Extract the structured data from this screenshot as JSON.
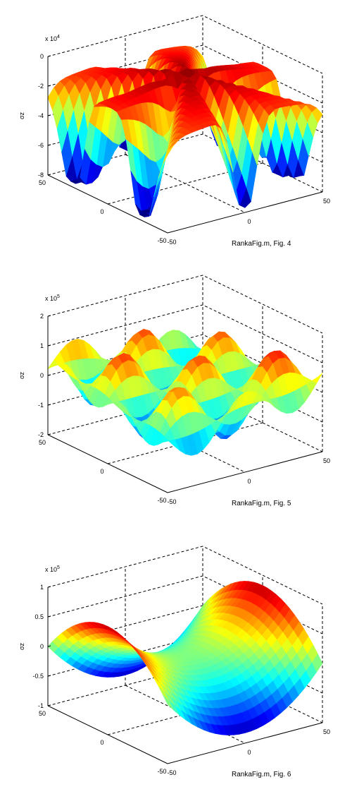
{
  "chart_data": [
    {
      "type": "surface",
      "caption": "RankaFig.m, Fig. 4",
      "ylabel": "σz",
      "z_multiplier": "x 10",
      "z_exponent": "4",
      "z_ticks": [
        "0",
        "-2",
        "-4",
        "-6",
        "-8"
      ],
      "zlim": [
        -8,
        0
      ],
      "x_ticks": [
        "-50",
        "0",
        "50"
      ],
      "y_ticks": [
        "50",
        "0",
        "-50"
      ],
      "xlim": [
        -50,
        50
      ],
      "ylim": [
        -50,
        50
      ],
      "colormap": [
        "#00008f",
        "#0000ff",
        "#00ffff",
        "#ffff00",
        "#ff0000",
        "#800000"
      ]
    },
    {
      "type": "surface",
      "caption": "RankaFig.m, Fig. 5",
      "ylabel": "σz",
      "z_multiplier": "x 10",
      "z_exponent": "5",
      "z_ticks": [
        "2",
        "1",
        "0",
        "-1",
        "-2"
      ],
      "zlim": [
        -2,
        2
      ],
      "x_ticks": [
        "-50",
        "0",
        "50"
      ],
      "y_ticks": [
        "50",
        "0",
        "-50"
      ],
      "xlim": [
        -50,
        50
      ],
      "ylim": [
        -50,
        50
      ],
      "colormap": [
        "#00008f",
        "#0000ff",
        "#00ffff",
        "#ffff00",
        "#ff0000",
        "#800000"
      ]
    },
    {
      "type": "surface",
      "caption": "RankaFig.m, Fig. 6",
      "ylabel": "σz",
      "z_multiplier": "x 10",
      "z_exponent": "5",
      "z_ticks": [
        "1",
        "0.5",
        "0",
        "-0.5",
        "-1"
      ],
      "zlim": [
        -1,
        1
      ],
      "x_ticks": [
        "-50",
        "0",
        "50"
      ],
      "y_ticks": [
        "50",
        "0",
        "-50"
      ],
      "xlim": [
        -50,
        50
      ],
      "ylim": [
        -50,
        50
      ],
      "colormap": [
        "#00008f",
        "#0000ff",
        "#00ffff",
        "#ffff00",
        "#ff0000",
        "#800000"
      ]
    }
  ]
}
